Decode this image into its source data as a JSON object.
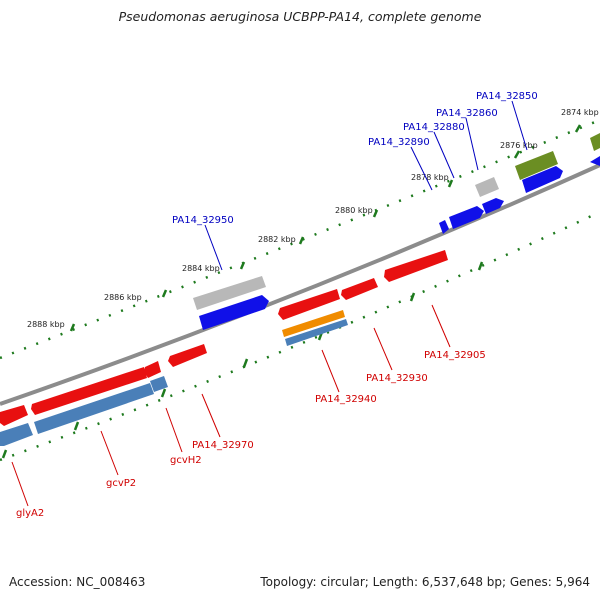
{
  "title": "Pseudomonas aeruginosa UCBPP-PA14, complete genome",
  "footer": {
    "accession": "Accession: NC_008463",
    "summary": "Topology: circular; Length: 6,537,648 bp; Genes: 5,964"
  },
  "colors": {
    "backbone": "#8c8c8c",
    "tick_green": "#1e7a1e",
    "label_plus": "#0000c0",
    "label_minus": "#d00000",
    "gene_red": "#e81010",
    "gene_blue": "#1010e8",
    "gene_steel": "#4a7fb8",
    "gene_gray": "#b8b8b8",
    "gene_olive": "#6b8e23",
    "gene_orange": "#f08c00"
  },
  "scale_labels": [
    "2874 kbp",
    "2876 kbp",
    "2878 kbp",
    "2880 kbp",
    "2882 kbp",
    "2884 kbp",
    "2886 kbp",
    "2888 kbp"
  ],
  "plus_labels": [
    "PA14_32850",
    "PA14_32860",
    "PA14_32880",
    "PA14_32890",
    "PA14_32950"
  ],
  "minus_labels": [
    "PA14_32905",
    "PA14_32930",
    "PA14_32940",
    "PA14_32970",
    "gcvH2",
    "gcvP2",
    "glyA2"
  ]
}
